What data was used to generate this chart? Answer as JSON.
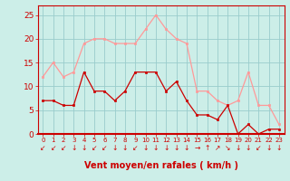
{
  "x": [
    0,
    1,
    2,
    3,
    4,
    5,
    6,
    7,
    8,
    9,
    10,
    11,
    12,
    13,
    14,
    15,
    16,
    17,
    18,
    19,
    20,
    21,
    22,
    23
  ],
  "wind_avg": [
    7,
    7,
    6,
    6,
    13,
    9,
    9,
    7,
    9,
    13,
    13,
    13,
    9,
    11,
    7,
    4,
    4,
    3,
    6,
    0,
    2,
    0,
    1,
    1
  ],
  "wind_gust": [
    12,
    15,
    12,
    13,
    19,
    20,
    20,
    19,
    19,
    19,
    22,
    25,
    22,
    20,
    19,
    9,
    9,
    7,
    6,
    7,
    13,
    6,
    6,
    2
  ],
  "avg_color": "#cc0000",
  "gust_color": "#ff9999",
  "bg_color": "#cceee8",
  "grid_color": "#99cccc",
  "axis_color": "#cc0000",
  "xlabel": "Vent moyen/en rafales ( km/h )",
  "ylim": [
    0,
    27
  ],
  "yticks": [
    0,
    5,
    10,
    15,
    20,
    25
  ],
  "xlim": [
    -0.5,
    23.5
  ],
  "arrow_chars": [
    "↙",
    "↙",
    "↙",
    "↓",
    "↓",
    "↙",
    "↙",
    "↓",
    "↓",
    "↙",
    "↓",
    "↓",
    "↓",
    "↓",
    "↓",
    "→",
    "↑",
    "↗",
    "↘",
    "↓",
    "↓",
    "↙",
    "↓",
    "↓"
  ]
}
